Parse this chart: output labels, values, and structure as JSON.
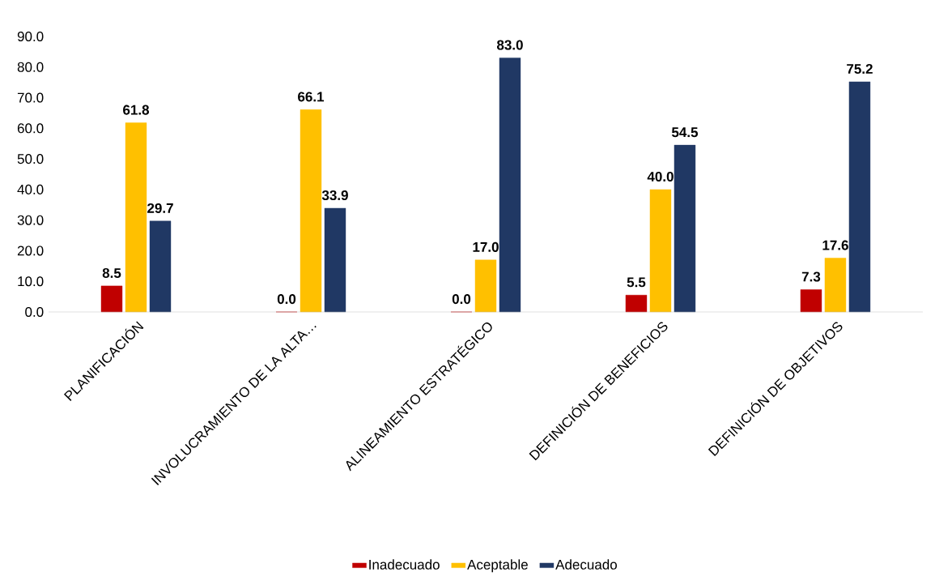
{
  "chart_data": {
    "type": "bar",
    "categories": [
      "PLANIFICACIÓN",
      "INVOLUCRAMIENTO DE LA ALTA…",
      "ALINEAMIENTO ESTRATÉGICO",
      "DEFINICIÓN DE BENEFICIOS",
      "DEFINICIÓN DE OBJETIVOS"
    ],
    "series": [
      {
        "name": "Inadecuado",
        "color": "#c00000",
        "values": [
          8.5,
          0.0,
          0.0,
          5.5,
          7.3
        ],
        "value_labels": [
          "8.5",
          "0.0",
          "0.0",
          "5.5",
          "7.3"
        ]
      },
      {
        "name": "Aceptable",
        "color": "#ffc000",
        "values": [
          61.8,
          66.1,
          17.0,
          40.0,
          17.6
        ],
        "value_labels": [
          "61.8",
          "66.1",
          "17.0",
          "40.0",
          "17.6"
        ]
      },
      {
        "name": "Adecuado",
        "color": "#203864",
        "values": [
          29.7,
          33.9,
          83.0,
          54.5,
          75.2
        ],
        "value_labels": [
          "29.7",
          "33.9",
          "83.0",
          "54.5",
          "75.2"
        ]
      }
    ],
    "ylim": [
      0,
      90
    ],
    "yticks": [
      {
        "value": 0,
        "label": "0.0"
      },
      {
        "value": 10,
        "label": "10.0"
      },
      {
        "value": 20,
        "label": "20.0"
      },
      {
        "value": 30,
        "label": "30.0"
      },
      {
        "value": 40,
        "label": "40.0"
      },
      {
        "value": 50,
        "label": "50.0"
      },
      {
        "value": 60,
        "label": "60.0"
      },
      {
        "value": 70,
        "label": "70.0"
      },
      {
        "value": 80,
        "label": "80.0"
      },
      {
        "value": 90,
        "label": "90.0"
      }
    ],
    "legend": "bottom"
  }
}
